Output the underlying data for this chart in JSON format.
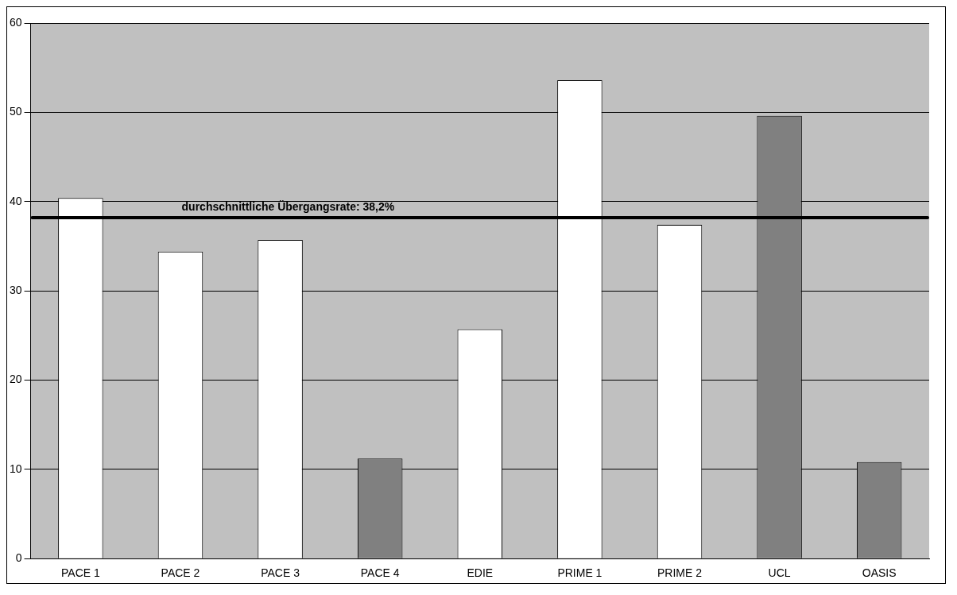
{
  "chart_data": {
    "type": "bar",
    "categories": [
      "PACE 1",
      "PACE 2",
      "PACE 3",
      "PACE 4",
      "EDIE",
      "PRIME 1",
      "PRIME 2",
      "UCL",
      "OASIS"
    ],
    "values": [
      40.4,
      34.4,
      35.7,
      11.2,
      25.7,
      53.6,
      37.4,
      49.6,
      10.8
    ],
    "colors": [
      "#ffffff",
      "#ffffff",
      "#ffffff",
      "#808080",
      "#ffffff",
      "#ffffff",
      "#ffffff",
      "#808080",
      "#808080"
    ],
    "ylim": [
      0,
      60
    ],
    "yticks": [
      0,
      10,
      20,
      30,
      40,
      50,
      60
    ],
    "grid": "y",
    "ref_lines": [
      {
        "axis": "y",
        "value": 38.2,
        "label": "durchschnittliche Übergangsrate: 38,2%",
        "color": "#000000"
      }
    ]
  }
}
